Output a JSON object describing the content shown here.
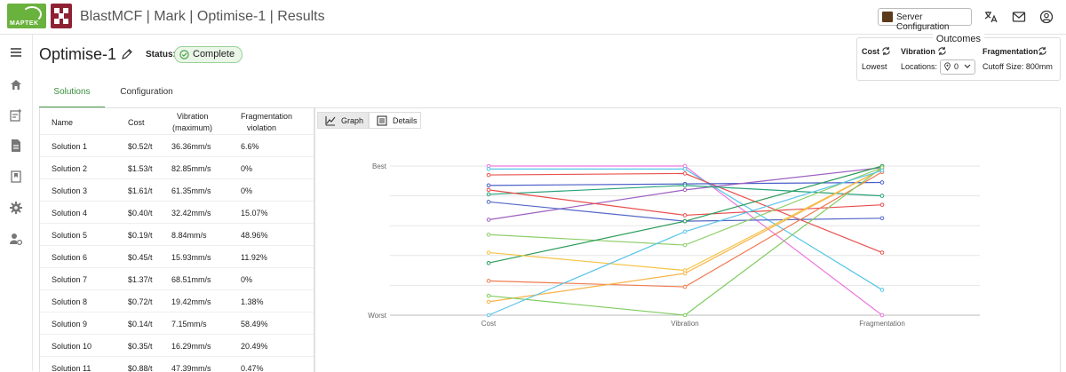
{
  "header": {
    "title": "BlastMCF | Mark | Optimise-1 | Results",
    "maptek_logo_text": "MAPTEK",
    "server_button": "Server Configuration",
    "icons": [
      "translate-icon",
      "mail-icon",
      "account-icon"
    ]
  },
  "sidebar": {
    "icons": [
      "menu-icon",
      "home-icon",
      "add-note-icon",
      "document-icon",
      "bookmark-icon",
      "gear-icon",
      "user-settings-icon"
    ]
  },
  "page": {
    "title": "Optimise-1",
    "status_label": "Status:",
    "status_value": "Complete"
  },
  "outcomes": {
    "title": "Outcomes",
    "cost_label": "Cost",
    "cost_value": "Lowest",
    "vibration_label": "Vibration",
    "vibration_value": "Locations:",
    "locations_count": "0",
    "fragmentation_label": "Fragmentation",
    "fragmentation_value": "Cutoff Size: 800mm"
  },
  "tabs": {
    "solutions": "Solutions",
    "configuration": "Configuration"
  },
  "table": {
    "headers": {
      "name": "Name",
      "cost": "Cost",
      "vibration": "Vibration",
      "vibration_sub": "(maximum)",
      "fragmentation": "Fragmentation",
      "fragmentation_sub": "violation"
    },
    "rows": [
      {
        "name": "Solution 1",
        "cost": "$0.52/t",
        "vibration": "36.36mm/s",
        "frag": "6.6%"
      },
      {
        "name": "Solution 2",
        "cost": "$1.53/t",
        "vibration": "82.85mm/s",
        "frag": "0%"
      },
      {
        "name": "Solution 3",
        "cost": "$1.61/t",
        "vibration": "61.35mm/s",
        "frag": "0%"
      },
      {
        "name": "Solution 4",
        "cost": "$0.40/t",
        "vibration": "32.42mm/s",
        "frag": "15.07%"
      },
      {
        "name": "Solution 5",
        "cost": "$0.19/t",
        "vibration": "8.84mm/s",
        "frag": "48.96%"
      },
      {
        "name": "Solution 6",
        "cost": "$0.45/t",
        "vibration": "15.93mm/s",
        "frag": "11.92%"
      },
      {
        "name": "Solution 7",
        "cost": "$1.37/t",
        "vibration": "68.51mm/s",
        "frag": "0%"
      },
      {
        "name": "Solution 8",
        "cost": "$0.72/t",
        "vibration": "19.42mm/s",
        "frag": "1.38%"
      },
      {
        "name": "Solution 9",
        "cost": "$0.14/t",
        "vibration": "7.15mm/s",
        "frag": "58.49%"
      },
      {
        "name": "Solution 10",
        "cost": "$0.35/t",
        "vibration": "16.29mm/s",
        "frag": "20.49%"
      },
      {
        "name": "Solution 11",
        "cost": "$0.88/t",
        "vibration": "47.39mm/s",
        "frag": "0.47%"
      }
    ]
  },
  "view_toggle": {
    "graph": "Graph",
    "details": "Details"
  },
  "chart_data": {
    "type": "line",
    "categories": [
      "Cost",
      "Vibration",
      "Fragmentation"
    ],
    "y_top_label": "Best",
    "y_bottom_label": "Worst",
    "ylim": [
      0,
      1
    ],
    "grid": true,
    "series": [
      {
        "color": "#ee77dd",
        "values": [
          1.0,
          1.0,
          0.0
        ]
      },
      {
        "color": "#55c6e8",
        "values": [
          0.98,
          0.98,
          0.17
        ]
      },
      {
        "color": "#e8514f",
        "values": [
          0.94,
          0.95,
          0.42
        ]
      },
      {
        "color": "#4a5fc8",
        "values": [
          0.87,
          0.88,
          0.89
        ]
      },
      {
        "color": "#9c5fc0",
        "values": [
          0.64,
          0.84,
          0.99
        ]
      },
      {
        "color": "#27a27a",
        "values": [
          0.81,
          0.87,
          0.8
        ]
      },
      {
        "color": "#e84e4e",
        "values": [
          0.84,
          0.67,
          0.74
        ]
      },
      {
        "color": "#5468c6",
        "values": [
          0.76,
          0.63,
          0.65
        ]
      },
      {
        "color": "#8fce6c",
        "values": [
          0.54,
          0.47,
          0.99
        ]
      },
      {
        "color": "#2c9c5a",
        "values": [
          0.35,
          0.63,
          1.0
        ]
      },
      {
        "color": "#f5c344",
        "values": [
          0.42,
          0.3,
          0.98
        ]
      },
      {
        "color": "#f07a4e",
        "values": [
          0.23,
          0.19,
          0.96
        ]
      },
      {
        "color": "#f7b44a",
        "values": [
          0.09,
          0.28,
          0.98
        ]
      },
      {
        "color": "#7fcb5f",
        "values": [
          0.13,
          0.0,
          0.99
        ]
      },
      {
        "color": "#5bc4ea",
        "values": [
          0.0,
          0.56,
          0.97
        ]
      }
    ]
  }
}
